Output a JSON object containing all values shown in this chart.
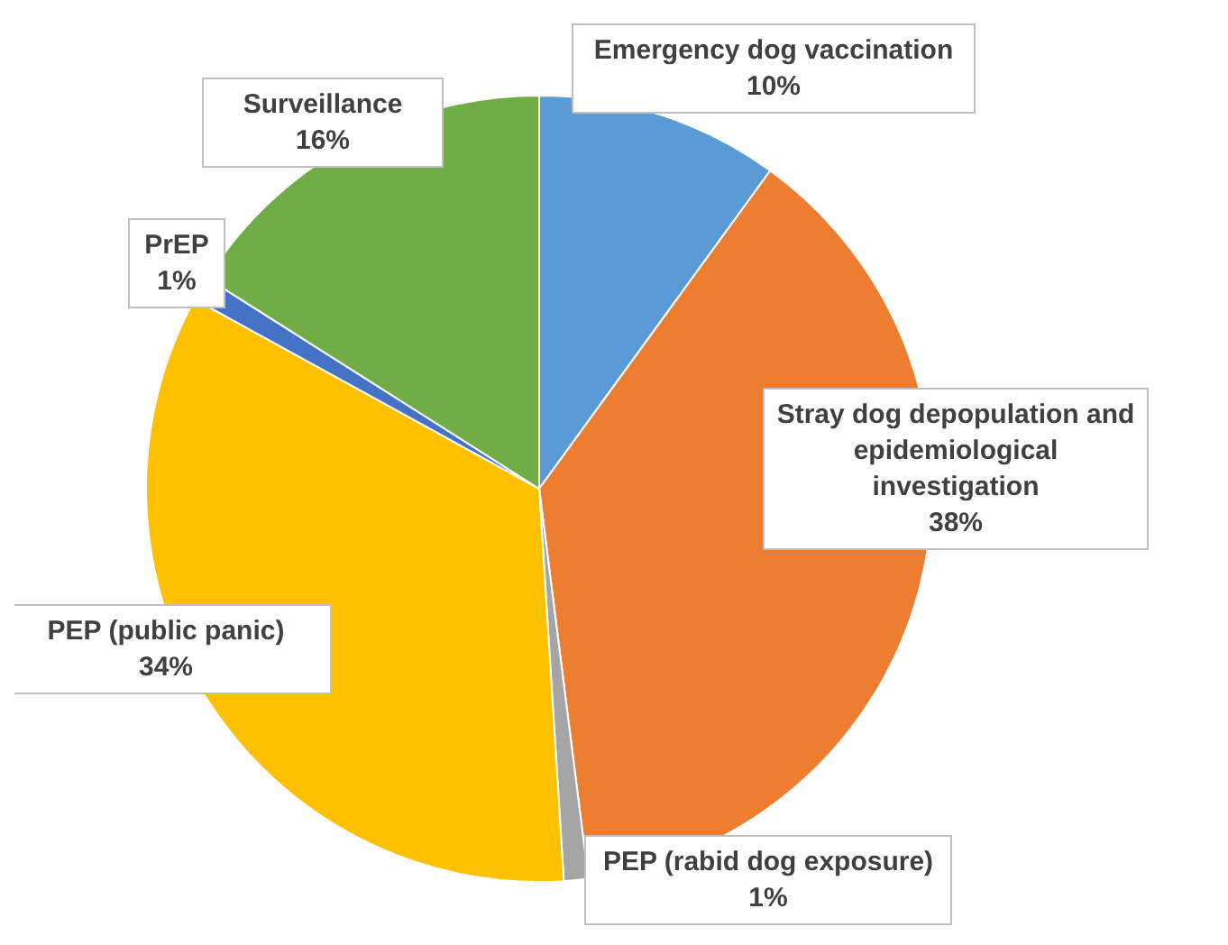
{
  "chart_data": {
    "type": "pie",
    "categories": [
      "Emergency dog vaccination",
      "Stray dog depopulation and epidemiological investigation",
      "PEP (rabid dog exposure)",
      "PEP (public panic)",
      "PrEP",
      "Surveillance"
    ],
    "values": [
      10,
      38,
      1,
      34,
      1,
      16
    ],
    "value_labels": [
      "10%",
      "38%",
      "1%",
      "34%",
      "1%",
      "16%"
    ],
    "colors": [
      "#5b9bd5",
      "#ed7d31",
      "#a5a5a5",
      "#ffc000",
      "#4472c4",
      "#70ad47"
    ],
    "legend": false
  }
}
